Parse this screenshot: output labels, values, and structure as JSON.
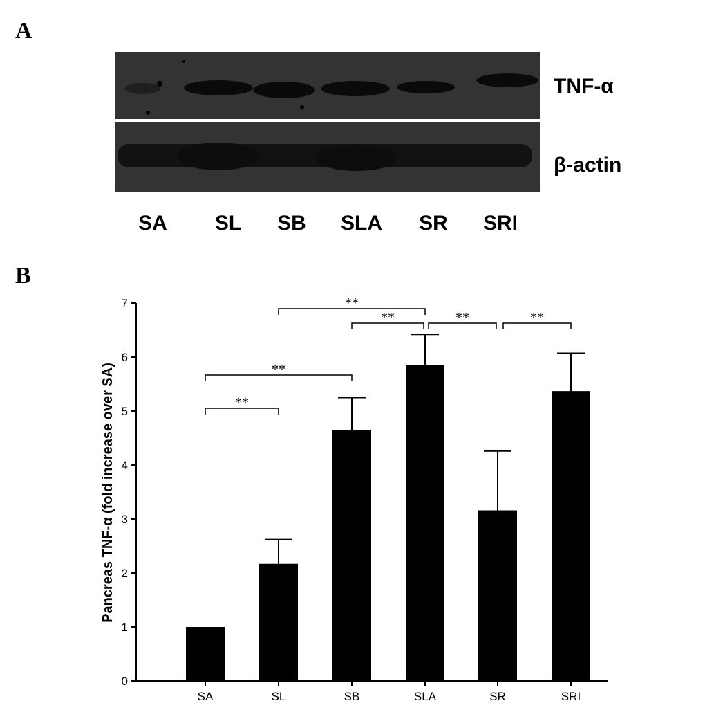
{
  "panels": {
    "a": "A",
    "b": "B"
  },
  "western_blot": {
    "bands": [
      "TNF-α",
      "β-actin"
    ],
    "lanes": [
      "SA",
      "SL",
      "SB",
      "SLA",
      "SR",
      "SRI"
    ]
  },
  "chart_data": {
    "type": "bar",
    "categories": [
      "SA",
      "SL",
      "SB",
      "SLA",
      "SR",
      "SRI"
    ],
    "values": [
      1.0,
      2.17,
      4.65,
      5.85,
      3.16,
      5.37
    ],
    "error": [
      0.0,
      0.45,
      0.6,
      0.57,
      1.1,
      0.7
    ],
    "xlabel": "",
    "ylabel": "Pancreas TNF-α (fold increase over SA)",
    "ylim": [
      0,
      7
    ],
    "yticks": [
      0,
      1,
      2,
      3,
      4,
      5,
      6,
      7
    ],
    "bar_color": "#000000",
    "grid": false,
    "significance": [
      {
        "from": "SL",
        "to": "SLA",
        "label": "**"
      },
      {
        "from": "SB",
        "to": "SLA",
        "label": "**"
      },
      {
        "from": "SLA",
        "to": "SR",
        "label": "**"
      },
      {
        "from": "SR",
        "to": "SRI",
        "label": "**"
      },
      {
        "from": "SA",
        "to": "SB",
        "label": "**"
      },
      {
        "from": "SA",
        "to": "SL",
        "label": "**"
      }
    ]
  }
}
